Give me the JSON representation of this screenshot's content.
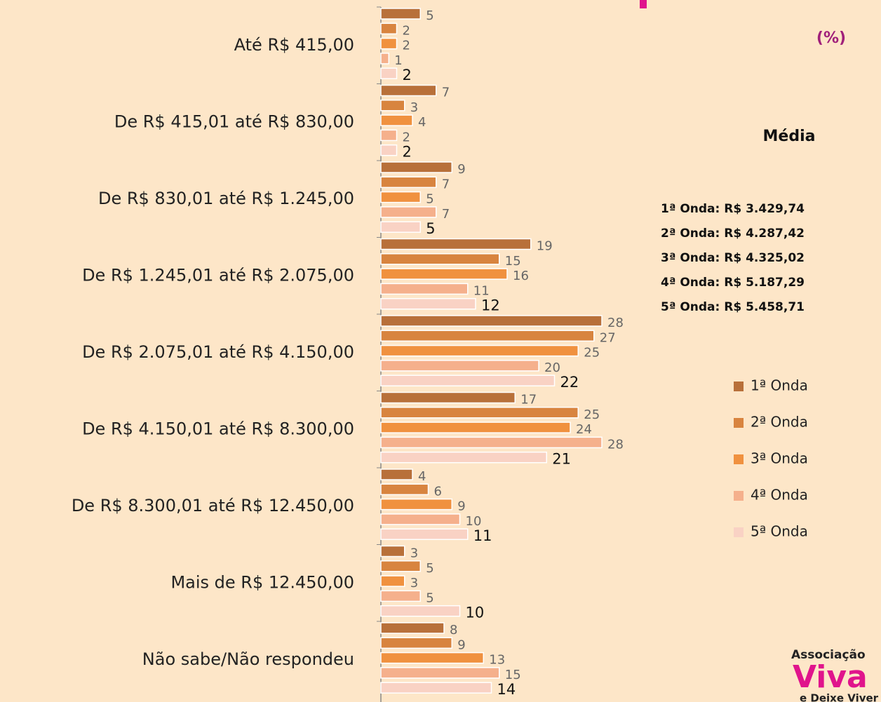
{
  "chart_data": {
    "type": "bar",
    "orientation": "horizontal",
    "unit_label": "(%)",
    "categories": [
      "Até R$ 415,00",
      "De R$ 415,01 até R$ 830,00",
      "De R$ 830,01 até R$ 1.245,00",
      "De R$ 1.245,01 até R$ 2.075,00",
      "De R$ 2.075,01 até R$ 4.150,00",
      "De R$ 4.150,01 até R$ 8.300,00",
      "De R$ 8.300,01 até R$ 12.450,00",
      "Mais de R$ 12.450,00",
      "Não sabe/Não respondeu"
    ],
    "series": [
      {
        "name": "1ª Onda",
        "color": "#b8703a",
        "values": [
          5,
          7,
          9,
          19,
          28,
          17,
          4,
          3,
          8
        ]
      },
      {
        "name": "2ª Onda",
        "color": "#d8843f",
        "values": [
          2,
          3,
          7,
          15,
          27,
          25,
          6,
          5,
          9
        ]
      },
      {
        "name": "3ª Onda",
        "color": "#f0913f",
        "values": [
          2,
          4,
          5,
          16,
          25,
          24,
          9,
          3,
          13
        ]
      },
      {
        "name": "4ª Onda",
        "color": "#f5b08c",
        "values": [
          1,
          2,
          7,
          11,
          20,
          28,
          10,
          5,
          15
        ]
      },
      {
        "name": "5ª Onda",
        "color": "#f9d2c4",
        "values": [
          2,
          2,
          5,
          12,
          22,
          21,
          11,
          10,
          14
        ]
      }
    ],
    "xlim": [
      0,
      28
    ],
    "annotation": {
      "title": "Média",
      "lines": [
        "1ª Onda: R$ 3.429,74",
        "2ª Onda: R$ 4.287,42",
        "3ª Onda: R$ 4.325,02",
        "4ª Onda: R$ 5.187,29",
        "5ª Onda: R$ 5.458,71"
      ]
    },
    "logo": [
      "Associação",
      "Viva",
      "e Deixe Viver"
    ],
    "legend": "right"
  }
}
